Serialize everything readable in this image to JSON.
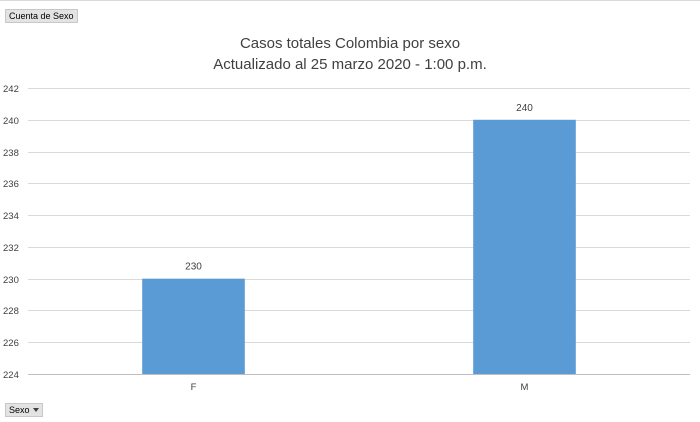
{
  "controls": {
    "value_field": "Cuenta de Sexo",
    "axis_field": "Sexo"
  },
  "chart_data": {
    "type": "bar",
    "title": "Casos totales Colombia por sexo",
    "subtitle": "Actualizado al 25 marzo 2020 - 1:00 p.m.",
    "categories": [
      "F",
      "M"
    ],
    "values": [
      230,
      240
    ],
    "data_labels": [
      "230",
      "240"
    ],
    "ylim": [
      224,
      242
    ],
    "yticks": [
      224,
      226,
      228,
      230,
      232,
      234,
      236,
      238,
      240,
      242
    ],
    "grid": true,
    "legend": "none",
    "bar_color": "#5b9bd5",
    "gridline_color": "#d9d9d9",
    "text_color": "#404040"
  }
}
